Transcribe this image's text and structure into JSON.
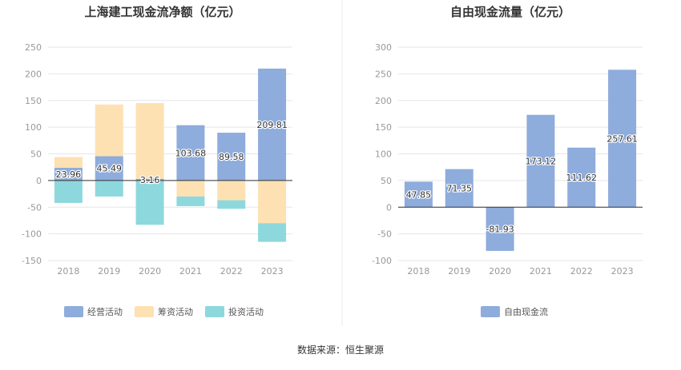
{
  "source": "数据来源：恒生聚源",
  "colors": {
    "operating": "#8eacdc",
    "financing": "#fde1b2",
    "investing": "#8dd8dd",
    "fcf": "#8eacdc",
    "grid": "#e6e6e6",
    "axis": "#333333"
  },
  "chart_data": [
    {
      "type": "bar",
      "stacked": true,
      "title": "上海建工现金流净额（亿元）",
      "categories": [
        "2018",
        "2019",
        "2020",
        "2021",
        "2022",
        "2023"
      ],
      "ylim": [
        -150,
        250
      ],
      "yticks": [
        -150,
        -100,
        -50,
        0,
        50,
        100,
        150,
        200,
        250
      ],
      "series": [
        {
          "name": "经营活动",
          "color_key": "operating",
          "values": [
            23.96,
            45.49,
            3.16,
            103.68,
            89.58,
            209.81
          ],
          "labels": [
            "23.96",
            "45.49",
            "3.16",
            "103.68",
            "89.58",
            "209.81"
          ]
        },
        {
          "name": "筹资活动",
          "color_key": "financing",
          "values": [
            20,
            97,
            142,
            -30,
            -37,
            -80
          ]
        },
        {
          "name": "投资活动",
          "color_key": "investing",
          "values": [
            -42,
            -30,
            -83,
            -18,
            -16,
            -35
          ]
        }
      ],
      "legend_position": "bottom"
    },
    {
      "type": "bar",
      "title": "自由现金流量（亿元）",
      "categories": [
        "2018",
        "2019",
        "2020",
        "2021",
        "2022",
        "2023"
      ],
      "ylim": [
        -100,
        300
      ],
      "yticks": [
        -100,
        -50,
        0,
        50,
        100,
        150,
        200,
        250,
        300
      ],
      "series": [
        {
          "name": "自由现金流",
          "color_key": "fcf",
          "values": [
            47.85,
            71.35,
            -81.93,
            173.12,
            111.62,
            257.61
          ],
          "labels": [
            "47.85",
            "71.35",
            "-81.93",
            "173.12",
            "111.62",
            "257.61"
          ]
        }
      ],
      "legend_position": "bottom"
    }
  ]
}
